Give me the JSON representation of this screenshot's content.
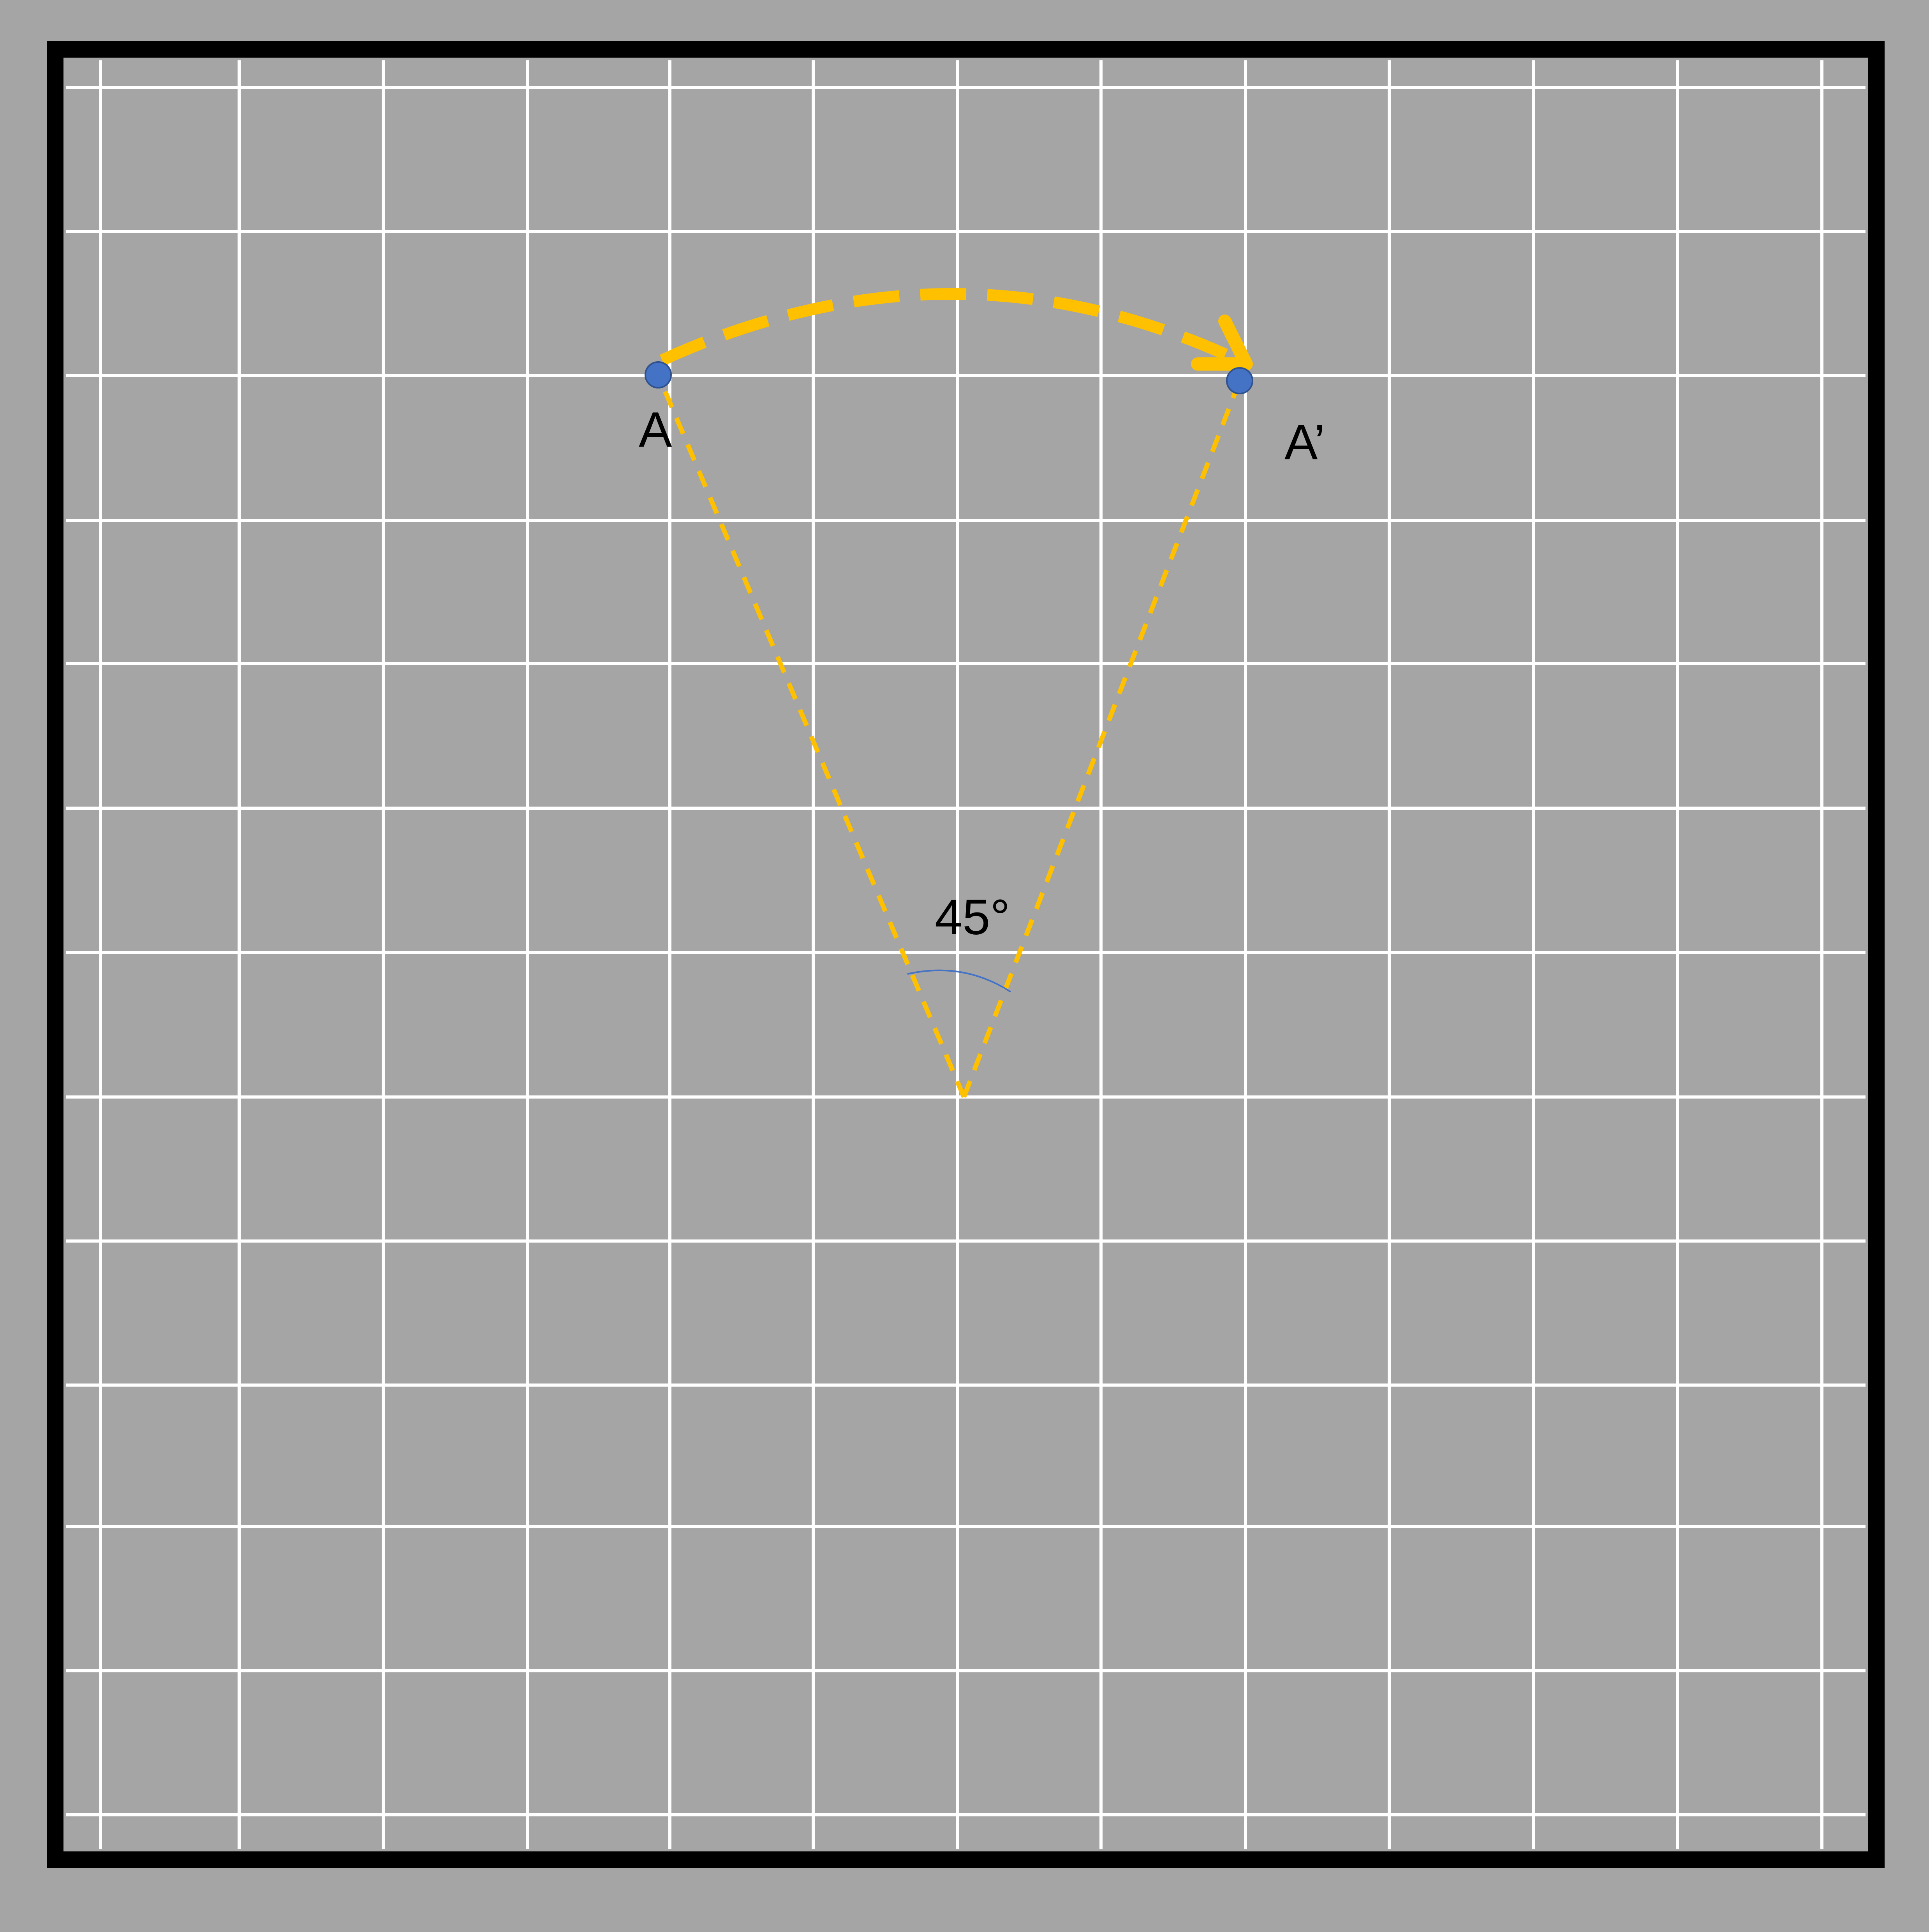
{
  "colors": {
    "background": "#a5a5a5",
    "frame": "#000000",
    "grid_lines": "#ffffff",
    "rotation_path": "#ffc000",
    "points": "#4472c4",
    "angle_arc": "#4472c4",
    "text": "#000000"
  },
  "points": {
    "original_label": "A",
    "rotated_label": "A’"
  },
  "rotation": {
    "angle_label": "45°",
    "direction": "clockwise"
  }
}
